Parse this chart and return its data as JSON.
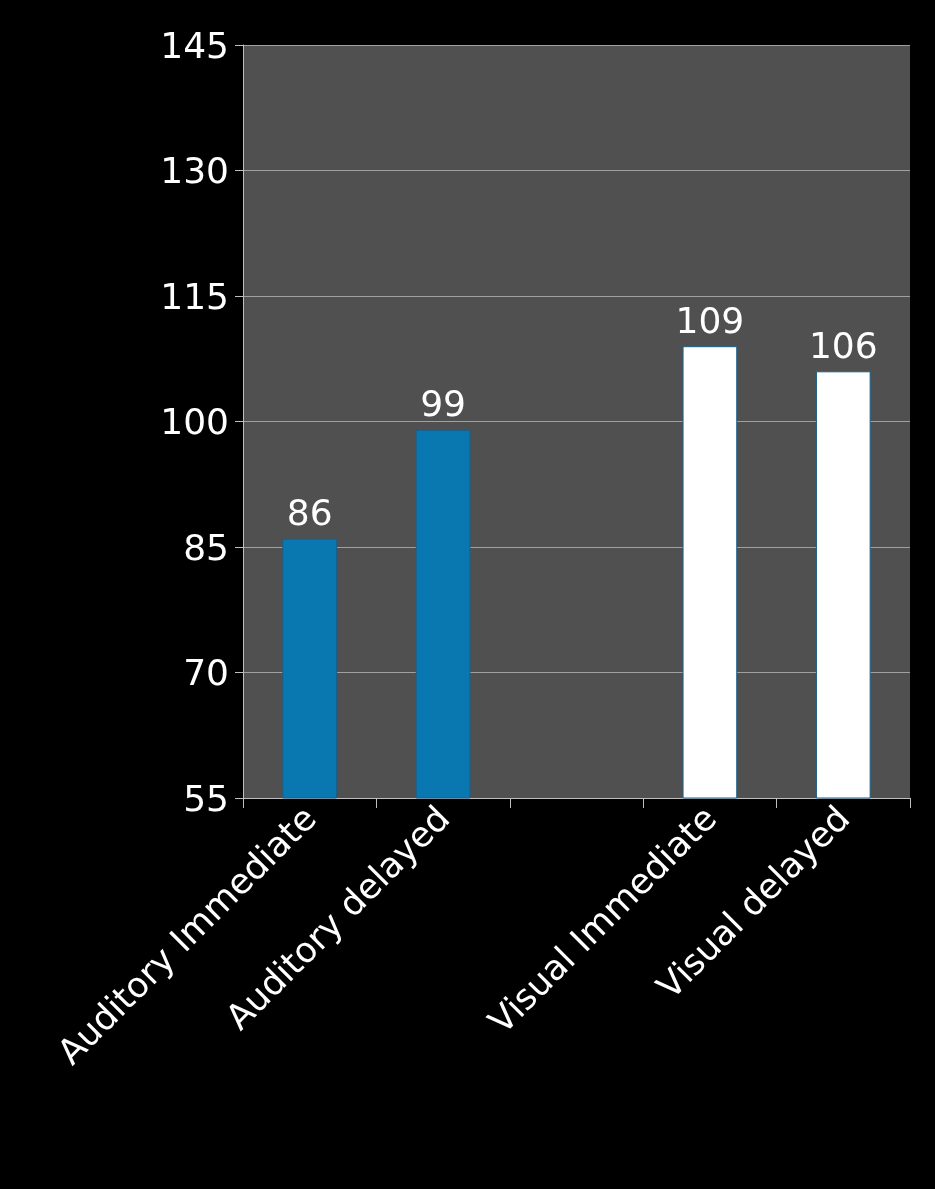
{
  "chart_data": {
    "type": "bar",
    "categories": [
      "Auditory Immediate",
      "Auditory delayed",
      null,
      "Visual Immediate",
      "Visual delayed"
    ],
    "values": [
      86,
      99,
      null,
      109,
      106
    ],
    "colors": [
      "#0a78b0",
      "#0a78b0",
      null,
      "#ffffff",
      "#ffffff"
    ],
    "ylim": [
      55,
      145
    ],
    "yticks": [
      55,
      70,
      85,
      100,
      115,
      130,
      145
    ],
    "grid": "y",
    "data_labels": true
  }
}
